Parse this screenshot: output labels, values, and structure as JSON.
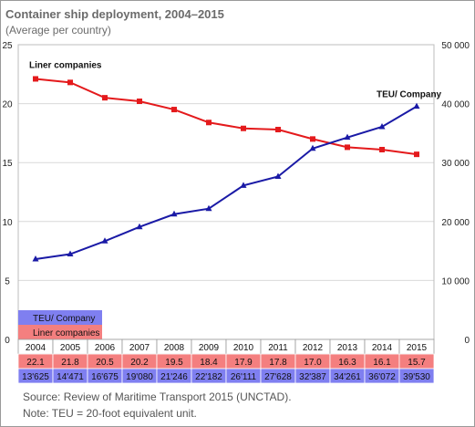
{
  "title": "Container ship deployment, 2004–2015",
  "subtitle": "(Average per country)",
  "source": "Source: Review of Maritime Transport 2015 (UNCTAD).",
  "note": "Note: TEU = 20-foot equivalent unit.",
  "colors": {
    "liner": "#e41a1c",
    "teu": "#1a1aa6",
    "liner_row_bg": "#f47f7f",
    "teu_row_bg": "#7f7ff0",
    "grid": "#d9d9d9"
  },
  "chart_data": {
    "type": "line",
    "x": [
      "2004",
      "2005",
      "2006",
      "2007",
      "2008",
      "2009",
      "2010",
      "2011",
      "2012",
      "2013",
      "2014",
      "2015"
    ],
    "series": [
      {
        "name": "Liner companies",
        "axis": "left",
        "marker": "square",
        "values": [
          22.1,
          21.8,
          20.5,
          20.2,
          19.5,
          18.4,
          17.9,
          17.8,
          17.0,
          16.3,
          16.1,
          15.7
        ],
        "table_labels": [
          "22.1",
          "21.8",
          "20.5",
          "20.2",
          "19.5",
          "18.4",
          "17.9",
          "17.8",
          "17.0",
          "16.3",
          "16.1",
          "15.7"
        ]
      },
      {
        "name": "TEU/ Company",
        "axis": "right",
        "marker": "triangle",
        "values": [
          13625,
          14471,
          16675,
          19080,
          21246,
          22182,
          26111,
          27628,
          32387,
          34261,
          36072,
          39530
        ],
        "table_labels": [
          "13'625",
          "14'471",
          "16'675",
          "19'080",
          "21'246",
          "22'182",
          "26'111",
          "27'628",
          "32'387",
          "34'261",
          "36'072",
          "39'530"
        ]
      }
    ],
    "left_axis": {
      "ylim": [
        0,
        25
      ],
      "ticks": [
        "0",
        "5",
        "10",
        "15",
        "20",
        "25"
      ]
    },
    "right_axis": {
      "ylim": [
        0,
        50000
      ],
      "ticks": [
        "0",
        "10 000",
        "20 000",
        "30 000",
        "40 000",
        "50 000"
      ]
    },
    "annotations": {
      "liner": "Liner companies",
      "teu": "TEU/ Company"
    },
    "legend": {
      "teu": "TEU/ Company",
      "liner": "Liner companies",
      "placement": "bottom-left above data table"
    },
    "grid": true
  }
}
